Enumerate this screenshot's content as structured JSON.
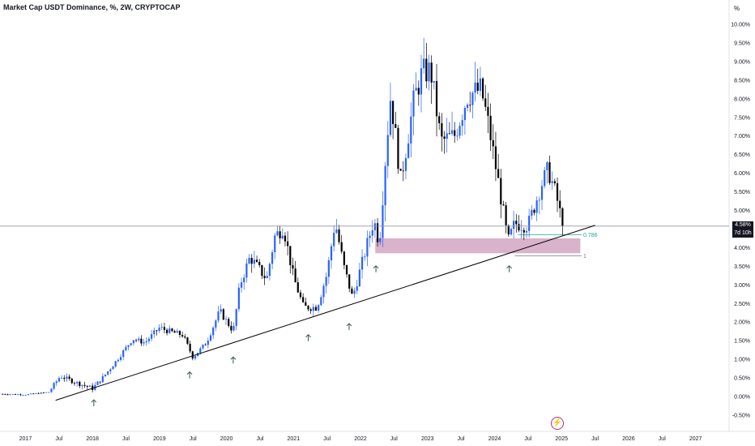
{
  "header": {
    "title": "Market Cap USDT Dominance, %, 2W, CRYPTOCAP",
    "unit": "%"
  },
  "price_badge": {
    "price": "4.58%",
    "countdown": "7d 10h"
  },
  "fib_labels": {
    "level_786": "0.786",
    "level_1": "1"
  },
  "logo": {
    "icon": "bolt-icon"
  },
  "colors": {
    "bull": "#2962ff",
    "bear": "#000000",
    "zone": "#cf9fbe",
    "trendline": "#000000",
    "fib786": "#26a69a",
    "fib1": "#787b86",
    "arrow": "#3a5a4a"
  },
  "chart_data": {
    "type": "candlestick",
    "title": "Market Cap USDT Dominance, %, 2W, CRYPTOCAP",
    "timeframe": "2W",
    "x_labels": [
      "2017",
      "Jul",
      "2018",
      "Jul",
      "2019",
      "Jul",
      "2020",
      "Jul",
      "2021",
      "Jul",
      "2022",
      "Jul",
      "2023",
      "Jul",
      "2024",
      "Jul",
      "2025",
      "Jul",
      "2026",
      "Jul",
      "2027"
    ],
    "x_range": [
      2016.62,
      2027.5
    ],
    "y_ticks": [
      "10.00%",
      "9.50%",
      "9.00%",
      "8.50%",
      "8.00%",
      "7.50%",
      "7.00%",
      "6.50%",
      "6.00%",
      "5.50%",
      "5.00%",
      "4.50%",
      "4.00%",
      "3.50%",
      "3.00%",
      "2.50%",
      "2.00%",
      "1.50%",
      "1.00%",
      "0.50%",
      "0.00%",
      "-0.50%"
    ],
    "y_range": [
      -0.5,
      10.0
    ],
    "last_price": 4.58,
    "grid": false,
    "trendline": {
      "from": [
        2017.45,
        -0.1
      ],
      "to": [
        2025.5,
        4.6
      ]
    },
    "support_zone": {
      "x_start": 2022.22,
      "x_end": 2025.28,
      "y_low": 3.85,
      "y_high": 4.25
    },
    "fib_levels": [
      {
        "label": "0.786",
        "value": 4.35,
        "x_start": 2024.35,
        "x_end": 2025.3
      },
      {
        "label": "1",
        "value": 3.78,
        "x_start": 2024.3,
        "x_end": 2025.3
      }
    ],
    "support_arrows": [
      {
        "x": 2018.02,
        "y": 0.0
      },
      {
        "x": 2019.45,
        "y": 0.75
      },
      {
        "x": 2020.1,
        "y": 1.15
      },
      {
        "x": 2021.22,
        "y": 1.75
      },
      {
        "x": 2021.83,
        "y": 2.05
      },
      {
        "x": 2022.23,
        "y": 3.6
      },
      {
        "x": 2024.22,
        "y": 3.6
      }
    ],
    "trend_waypoints": [
      [
        2016.62,
        0.07
      ],
      [
        2017.0,
        0.05
      ],
      [
        2017.35,
        0.12
      ],
      [
        2017.52,
        0.55
      ],
      [
        2017.75,
        0.38
      ],
      [
        2018.0,
        0.22
      ],
      [
        2018.15,
        0.5
      ],
      [
        2018.35,
        0.95
      ],
      [
        2018.6,
        1.55
      ],
      [
        2018.78,
        1.45
      ],
      [
        2019.0,
        1.85
      ],
      [
        2019.15,
        1.75
      ],
      [
        2019.35,
        1.65
      ],
      [
        2019.5,
        1.05
      ],
      [
        2019.7,
        1.45
      ],
      [
        2019.9,
        2.3
      ],
      [
        2020.1,
        1.75
      ],
      [
        2020.2,
        3.0
      ],
      [
        2020.35,
        3.75
      ],
      [
        2020.6,
        3.15
      ],
      [
        2020.72,
        4.3
      ],
      [
        2020.85,
        4.55
      ],
      [
        2021.0,
        3.2
      ],
      [
        2021.15,
        2.4
      ],
      [
        2021.35,
        2.4
      ],
      [
        2021.5,
        3.3
      ],
      [
        2021.62,
        4.7
      ],
      [
        2021.75,
        3.5
      ],
      [
        2021.88,
        2.65
      ],
      [
        2022.1,
        4.1
      ],
      [
        2022.2,
        4.75
      ],
      [
        2022.28,
        4.1
      ],
      [
        2022.38,
        6.6
      ],
      [
        2022.45,
        8.1
      ],
      [
        2022.6,
        5.8
      ],
      [
        2022.8,
        8.0
      ],
      [
        2022.92,
        8.7
      ],
      [
        2023.05,
        8.75
      ],
      [
        2023.2,
        6.85
      ],
      [
        2023.4,
        7.0
      ],
      [
        2023.6,
        8.1
      ],
      [
        2023.8,
        8.25
      ],
      [
        2023.92,
        7.2
      ],
      [
        2024.1,
        5.3
      ],
      [
        2024.2,
        4.15
      ],
      [
        2024.3,
        4.65
      ],
      [
        2024.5,
        4.6
      ],
      [
        2024.7,
        5.7
      ],
      [
        2024.8,
        6.1
      ],
      [
        2024.92,
        5.4
      ],
      [
        2025.02,
        4.58
      ]
    ]
  }
}
